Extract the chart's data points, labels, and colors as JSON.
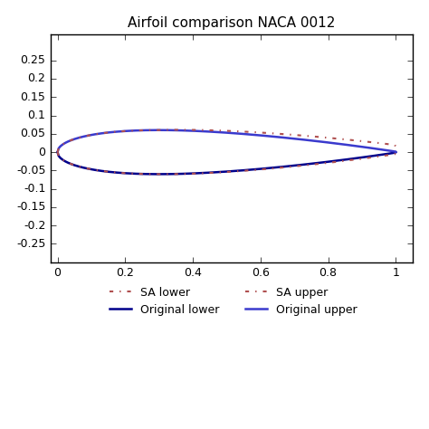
{
  "title": "Airfoil comparison NACA 0012",
  "xlim": [
    -0.02,
    1.05
  ],
  "ylim": [
    -0.3,
    0.32
  ],
  "xticks": [
    0,
    0.2,
    0.4,
    0.6,
    0.8,
    1.0
  ],
  "yticks": [
    -0.25,
    -0.2,
    -0.15,
    -0.1,
    -0.05,
    0,
    0.05,
    0.1,
    0.15,
    0.2,
    0.25
  ],
  "color_original_lower": "#00008B",
  "color_original_upper": "#3a3acd",
  "color_sa": "#b05050",
  "n_points": 300,
  "legend_labels": [
    "SA lower",
    "SA upper",
    "Original lower",
    "Original upper"
  ]
}
